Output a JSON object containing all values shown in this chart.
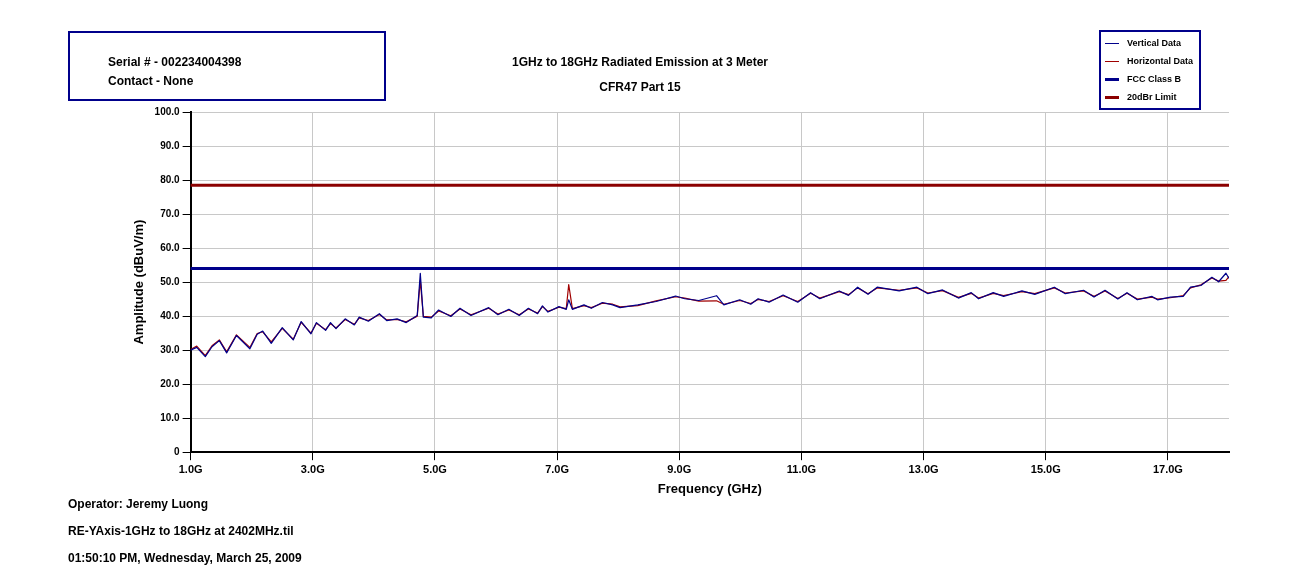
{
  "chart_data": {
    "type": "line",
    "title": "1GHz to 18GHz Radiated Emission at 3 Meter",
    "subtitle": "CFR47 Part 15",
    "xlabel": "Frequency (GHz)",
    "ylabel": "Amplitude (dBuV/m)",
    "annotations": [
      "Serial # - 002234004398",
      "Contact - None",
      "Operator: Jeremy Luong",
      "RE-YAxis-1GHz to 18GHz at 2402MHz.til",
      "01:50:10 PM, Wednesday, March 25, 2009"
    ],
    "x": [
      1.0,
      1.1,
      1.24,
      1.35,
      1.47,
      1.59,
      1.75,
      1.97,
      2.09,
      2.18,
      2.32,
      2.5,
      2.68,
      2.81,
      2.97,
      3.06,
      3.21,
      3.29,
      3.38,
      3.53,
      3.68,
      3.76,
      3.91,
      4.09,
      4.21,
      4.38,
      4.53,
      4.71,
      4.76,
      4.81,
      4.94,
      5.06,
      5.26,
      5.41,
      5.59,
      5.88,
      6.03,
      6.21,
      6.38,
      6.53,
      6.68,
      6.76,
      6.85,
      7.03,
      7.15,
      7.19,
      7.25,
      7.44,
      7.56,
      7.74,
      7.91,
      8.03,
      8.32,
      8.62,
      8.94,
      9.09,
      9.32,
      9.61,
      9.73,
      9.99,
      10.17,
      10.29,
      10.47,
      10.7,
      10.94,
      11.15,
      11.3,
      11.62,
      11.77,
      11.92,
      12.09,
      12.24,
      12.6,
      12.89,
      13.07,
      13.31,
      13.57,
      13.78,
      13.9,
      14.14,
      14.31,
      14.61,
      14.82,
      15.14,
      15.32,
      15.62,
      15.79,
      15.97,
      16.18,
      16.33,
      16.5,
      16.74,
      16.83,
      17.04,
      17.25,
      17.37,
      17.54,
      17.72,
      17.83,
      17.95,
      18.0
    ],
    "series": [
      {
        "name": "Vertical Data",
        "color": "#00008b",
        "values": [
          30,
          30.8,
          28.1,
          31,
          32.8,
          29.2,
          34.3,
          30.4,
          34.7,
          35.6,
          32,
          36.6,
          33,
          38.4,
          34.8,
          38.1,
          35.8,
          38.1,
          36.3,
          39.2,
          37.4,
          39.7,
          38.5,
          40.7,
          38.7,
          39.2,
          38.1,
          40.2,
          52.6,
          39.7,
          39.5,
          41.8,
          39.9,
          42.3,
          40.2,
          42.5,
          40.4,
          42,
          40.2,
          42.3,
          40.7,
          43,
          41.2,
          42.8,
          42,
          44.8,
          42,
          43.3,
          42.3,
          44,
          43.3,
          42.5,
          43.3,
          44.3,
          45.9,
          45.1,
          44.6,
          46,
          43.3,
          44.8,
          43.5,
          45.1,
          44.1,
          46.2,
          44.1,
          46.9,
          45.1,
          47.4,
          46.1,
          48.5,
          46.4,
          48.5,
          47.4,
          48.5,
          46.6,
          47.7,
          45.3,
          46.9,
          45.1,
          46.9,
          45.8,
          47.4,
          46.4,
          48.5,
          46.6,
          47.6,
          45.6,
          47.6,
          45,
          46.9,
          44.8,
          45.8,
          44.8,
          45.6,
          45.8,
          48.5,
          49,
          51.4,
          50.1,
          52.6,
          51.1
        ]
      },
      {
        "name": "Horizontal Data",
        "color": "#a00000",
        "values": [
          30.2,
          31.2,
          28.4,
          31.3,
          33,
          29.5,
          34.5,
          30.8,
          34.9,
          35.4,
          32.4,
          36.4,
          33.2,
          38.2,
          35,
          37.9,
          36,
          37.8,
          36.5,
          39,
          37.6,
          39.5,
          38.7,
          40.5,
          38.9,
          39,
          38.3,
          40,
          50.5,
          39.9,
          39.7,
          41.5,
          40.1,
          42.1,
          40.4,
          42.3,
          40.6,
          41.8,
          40.4,
          42.1,
          40.9,
          42.8,
          41.4,
          42.6,
          42.2,
          49.3,
          42.2,
          43.1,
          42.5,
          43.8,
          43.5,
          42.7,
          43.1,
          44.5,
          45.7,
          45.3,
          44.4,
          44.5,
          43.5,
          44.6,
          43.7,
          44.9,
          44.3,
          46,
          44.3,
          46.7,
          45.3,
          47.2,
          46.3,
          48.3,
          46.6,
          48.3,
          47.6,
          48.3,
          46.8,
          47.5,
          45.5,
          46.7,
          45.3,
          46.7,
          46,
          47.2,
          46.6,
          48.3,
          46.8,
          47.4,
          45.8,
          47.4,
          45.2,
          46.7,
          45,
          45.6,
          45,
          45.4,
          46,
          48.3,
          49.2,
          51.2,
          50.3,
          50.5,
          51.6
        ]
      }
    ],
    "ref_lines": [
      {
        "axis": "y",
        "value": 54,
        "label": "FCC Class B",
        "color": "#00008b"
      },
      {
        "axis": "y",
        "value": 78.5,
        "label": "20dBr Limit",
        "color": "#8b0000"
      }
    ],
    "xlim": [
      1,
      18
    ],
    "xticks": [
      {
        "value": 1,
        "label": "1.0G"
      },
      {
        "value": 3,
        "label": "3.0G"
      },
      {
        "value": 5,
        "label": "5.0G"
      },
      {
        "value": 7,
        "label": "7.0G"
      },
      {
        "value": 9,
        "label": "9.0G"
      },
      {
        "value": 11,
        "label": "11.0G"
      },
      {
        "value": 13,
        "label": "13.0G"
      },
      {
        "value": 15,
        "label": "15.0G"
      },
      {
        "value": 17,
        "label": "17.0G"
      }
    ],
    "ylim": [
      0,
      100
    ],
    "yticks": [
      0,
      {
        "value": 10,
        "label": "10.0"
      },
      {
        "value": 20,
        "label": "20.0"
      },
      {
        "value": 30,
        "label": "30.0"
      },
      {
        "value": 40,
        "label": "40.0"
      },
      {
        "value": 50,
        "label": "50.0"
      },
      {
        "value": 60,
        "label": "60.0"
      },
      {
        "value": 70,
        "label": "70.0"
      },
      {
        "value": 80,
        "label": "80.0"
      },
      {
        "value": 90,
        "label": "90.0"
      },
      {
        "value": 100,
        "label": "100.0"
      }
    ],
    "grid": true,
    "legend": "top right",
    "marker": "none",
    "line_style": "solid"
  }
}
